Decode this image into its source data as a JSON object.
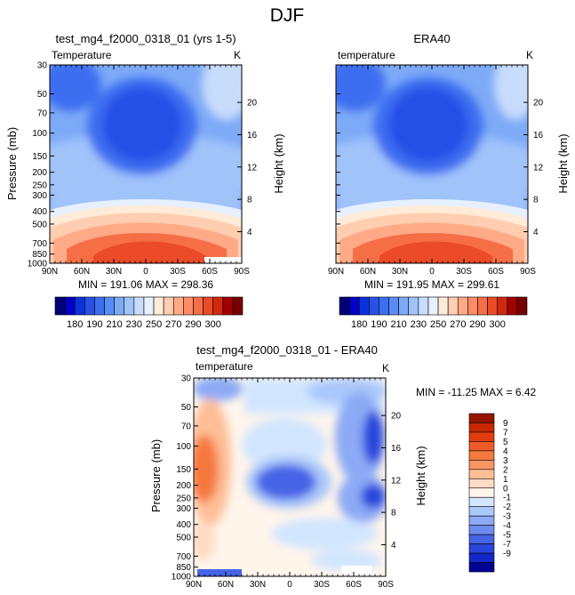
{
  "suptitle": "DJF",
  "chart_data": [
    {
      "type": "heatmap",
      "title": "test_mg4_f2000_0318_01 (yrs 1-5)",
      "left_label": "Temperature",
      "right_label": "K",
      "ylabel": "Pressure (mb)",
      "ylabel_right": "Height (km)",
      "xticks": [
        "90N",
        "60N",
        "30N",
        "0",
        "30S",
        "60S",
        "90S"
      ],
      "yticks": [
        "30",
        "50",
        "70",
        "100",
        "150",
        "200",
        "250",
        "300",
        "400",
        "500",
        "700",
        "850",
        "1000"
      ],
      "yticks_right": [
        "20",
        "16",
        "12",
        "8",
        "4"
      ],
      "stats": "MIN = 191.06   MAX = 298.36",
      "levels": [
        "180",
        "190",
        "210",
        "230",
        "250",
        "270",
        "290",
        "300"
      ],
      "colors": [
        "#000078",
        "#0000c8",
        "#0a32dc",
        "#2850e6",
        "#3c6ef0",
        "#5a8cf5",
        "#7daaf7",
        "#a0c3fa",
        "#c8dcfc",
        "#e6f0ff",
        "#ffebd7",
        "#ffcdaf",
        "#ffaa87",
        "#ff8c64",
        "#f56e46",
        "#eb4b28",
        "#d2280f",
        "#a00000",
        "#780000"
      ]
    },
    {
      "type": "heatmap",
      "title": "ERA40",
      "left_label": "temperature",
      "right_label": "K",
      "ylabel_right": "Height (km)",
      "xticks": [
        "90N",
        "60N",
        "30N",
        "0",
        "30S",
        "60S",
        "90S"
      ],
      "yticks_right": [
        "20",
        "16",
        "12",
        "8",
        "4"
      ],
      "stats": "MIN = 191.95   MAX = 299.61",
      "levels": [
        "180",
        "190",
        "210",
        "230",
        "250",
        "270",
        "290",
        "300"
      ]
    },
    {
      "type": "heatmap",
      "title": "test_mg4_f2000_0318_01 - ERA40",
      "left_label": "temperature",
      "right_label": "K",
      "ylabel": "Pressure (mb)",
      "ylabel_right": "Height (km)",
      "xticks": [
        "90N",
        "60N",
        "30N",
        "0",
        "30S",
        "60S",
        "90S"
      ],
      "yticks": [
        "30",
        "50",
        "70",
        "100",
        "150",
        "200",
        "250",
        "300",
        "400",
        "500",
        "700",
        "850",
        "1000"
      ],
      "yticks_right": [
        "20",
        "16",
        "12",
        "8",
        "4"
      ],
      "stats": "MIN = -11.25   MAX =    6.42",
      "levels": [
        "9",
        "7",
        "5",
        "4",
        "3",
        "2",
        "1",
        "0",
        "-1",
        "-2",
        "-3",
        "-4",
        "-5",
        "-7",
        "-9"
      ],
      "colors": [
        "#961400",
        "#c82800",
        "#e13c0f",
        "#f05a28",
        "#f5783c",
        "#fa9664",
        "#ffbe96",
        "#ffdcc3",
        "#fff5eb",
        "#d2e6ff",
        "#aac8fa",
        "#8caaf5",
        "#6e8cf0",
        "#4664e6",
        "#2846dc",
        "#1428c8",
        "#000096"
      ]
    }
  ]
}
